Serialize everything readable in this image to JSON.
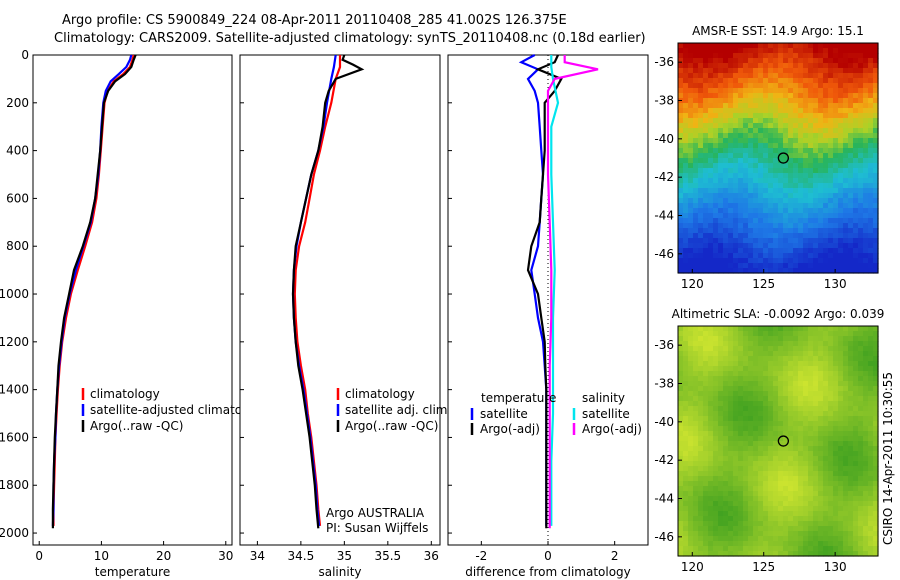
{
  "header": {
    "line1": "Argo profile: CS 5900849_224 08-Apr-2011 20110408_285 41.002S 126.375E",
    "line2": "Climatology: CARS2009. Satellite-adjusted climatology: synTS_20110408.nc (0.18d earlier)"
  },
  "colors": {
    "climatology": "#ff0000",
    "satellite": "#0000ff",
    "argo": "#000000",
    "sal_satellite": "#00e5ee",
    "sal_argo": "#ff00ff"
  },
  "chart_data": [
    {
      "type": "line",
      "name": "temperature-profile",
      "xlabel": "temperature",
      "xlim": [
        -1,
        31
      ],
      "ylim": [
        0,
        2050
      ],
      "xticks": [
        0,
        10,
        20,
        30
      ],
      "yticks": [
        0,
        200,
        400,
        600,
        800,
        1000,
        1200,
        1400,
        1600,
        1800,
        2000
      ],
      "legend": [
        "climatology",
        "satellite-adjusted climatology",
        "Argo(..raw -QC)"
      ],
      "series": [
        {
          "name": "climatology",
          "color": "#ff0000",
          "points": [
            [
              15.2,
              0
            ],
            [
              15.0,
              20
            ],
            [
              14.6,
              50
            ],
            [
              13.5,
              80
            ],
            [
              12.0,
              110
            ],
            [
              11.0,
              150
            ],
            [
              10.5,
              200
            ],
            [
              10.2,
              300
            ],
            [
              9.9,
              400
            ],
            [
              9.6,
              500
            ],
            [
              9.2,
              600
            ],
            [
              8.5,
              700
            ],
            [
              7.4,
              800
            ],
            [
              6.2,
              900
            ],
            [
              5.1,
              1000
            ],
            [
              4.3,
              1100
            ],
            [
              3.7,
              1200
            ],
            [
              3.3,
              1300
            ],
            [
              3.0,
              1400
            ],
            [
              2.8,
              1500
            ],
            [
              2.6,
              1600
            ],
            [
              2.5,
              1700
            ],
            [
              2.4,
              1800
            ],
            [
              2.3,
              1900
            ],
            [
              2.3,
              1970
            ]
          ]
        },
        {
          "name": "satellite-adjusted climatology",
          "color": "#0000ff",
          "points": [
            [
              14.8,
              0
            ],
            [
              14.6,
              20
            ],
            [
              14.0,
              50
            ],
            [
              12.8,
              80
            ],
            [
              11.5,
              110
            ],
            [
              10.7,
              150
            ],
            [
              10.3,
              200
            ],
            [
              10.0,
              300
            ],
            [
              9.8,
              400
            ],
            [
              9.5,
              500
            ],
            [
              9.0,
              600
            ],
            [
              8.3,
              700
            ],
            [
              7.1,
              800
            ],
            [
              5.9,
              900
            ],
            [
              4.9,
              1000
            ],
            [
              4.1,
              1100
            ],
            [
              3.6,
              1200
            ],
            [
              3.2,
              1300
            ],
            [
              2.9,
              1400
            ],
            [
              2.7,
              1500
            ],
            [
              2.6,
              1600
            ],
            [
              2.4,
              1700
            ],
            [
              2.3,
              1800
            ],
            [
              2.3,
              1900
            ],
            [
              2.2,
              1970
            ]
          ]
        },
        {
          "name": "Argo(..raw -QC)",
          "color": "#000000",
          "points": [
            [
              15.5,
              0
            ],
            [
              15.2,
              20
            ],
            [
              14.8,
              50
            ],
            [
              13.8,
              80
            ],
            [
              12.2,
              110
            ],
            [
              11.1,
              150
            ],
            [
              10.4,
              200
            ],
            [
              10.1,
              300
            ],
            [
              9.8,
              400
            ],
            [
              9.4,
              500
            ],
            [
              9.0,
              600
            ],
            [
              8.2,
              700
            ],
            [
              7.0,
              800
            ],
            [
              5.6,
              900
            ],
            [
              4.8,
              1000
            ],
            [
              4.0,
              1100
            ],
            [
              3.5,
              1200
            ],
            [
              3.1,
              1300
            ],
            [
              2.9,
              1400
            ],
            [
              2.7,
              1500
            ],
            [
              2.5,
              1600
            ],
            [
              2.4,
              1700
            ],
            [
              2.3,
              1800
            ],
            [
              2.2,
              1900
            ],
            [
              2.2,
              1980
            ]
          ]
        }
      ]
    },
    {
      "type": "line",
      "name": "salinity-profile",
      "xlabel": "salinity",
      "xlim": [
        33.8,
        36.1
      ],
      "ylim": [
        0,
        2050
      ],
      "xticks": [
        34,
        34.5,
        35,
        35.5,
        36
      ],
      "legend": [
        "climatology",
        "satellite adj. clim.",
        "Argo(..raw -QC)"
      ],
      "annotations": [
        "Argo AUSTRALIA",
        "PI: Susan Wijffels"
      ],
      "series": [
        {
          "name": "climatology",
          "color": "#ff0000",
          "points": [
            [
              34.95,
              0
            ],
            [
              34.95,
              50
            ],
            [
              34.9,
              100
            ],
            [
              34.85,
              200
            ],
            [
              34.78,
              300
            ],
            [
              34.72,
              400
            ],
            [
              34.65,
              500
            ],
            [
              34.6,
              600
            ],
            [
              34.55,
              700
            ],
            [
              34.48,
              800
            ],
            [
              34.44,
              900
            ],
            [
              34.43,
              1000
            ],
            [
              34.44,
              1100
            ],
            [
              34.46,
              1200
            ],
            [
              34.5,
              1300
            ],
            [
              34.55,
              1400
            ],
            [
              34.58,
              1500
            ],
            [
              34.62,
              1600
            ],
            [
              34.65,
              1700
            ],
            [
              34.68,
              1800
            ],
            [
              34.7,
              1900
            ],
            [
              34.72,
              1970
            ]
          ]
        },
        {
          "name": "satellite adj. clim.",
          "color": "#0000ff",
          "points": [
            [
              34.9,
              0
            ],
            [
              34.88,
              50
            ],
            [
              34.85,
              100
            ],
            [
              34.8,
              200
            ],
            [
              34.76,
              300
            ],
            [
              34.7,
              400
            ],
            [
              34.62,
              500
            ],
            [
              34.56,
              600
            ],
            [
              34.5,
              700
            ],
            [
              34.45,
              800
            ],
            [
              34.42,
              900
            ],
            [
              34.41,
              1000
            ],
            [
              34.42,
              1100
            ],
            [
              34.44,
              1200
            ],
            [
              34.48,
              1300
            ],
            [
              34.53,
              1400
            ],
            [
              34.57,
              1500
            ],
            [
              34.61,
              1600
            ],
            [
              34.64,
              1700
            ],
            [
              34.67,
              1800
            ],
            [
              34.69,
              1900
            ],
            [
              34.71,
              1970
            ]
          ]
        },
        {
          "name": "Argo(..raw -QC)",
          "color": "#000000",
          "points": [
            [
              35.0,
              0
            ],
            [
              34.98,
              20
            ],
            [
              35.1,
              40
            ],
            [
              35.2,
              60
            ],
            [
              34.9,
              100
            ],
            [
              34.82,
              150
            ],
            [
              34.78,
              200
            ],
            [
              34.75,
              300
            ],
            [
              34.7,
              400
            ],
            [
              34.62,
              500
            ],
            [
              34.56,
              600
            ],
            [
              34.5,
              700
            ],
            [
              34.44,
              800
            ],
            [
              34.42,
              900
            ],
            [
              34.41,
              1000
            ],
            [
              34.42,
              1100
            ],
            [
              34.44,
              1200
            ],
            [
              34.47,
              1300
            ],
            [
              34.52,
              1400
            ],
            [
              34.56,
              1500
            ],
            [
              34.6,
              1600
            ],
            [
              34.63,
              1700
            ],
            [
              34.66,
              1800
            ],
            [
              34.68,
              1900
            ],
            [
              34.7,
              1980
            ]
          ]
        }
      ]
    },
    {
      "type": "line",
      "name": "difference-from-climatology",
      "xlabel": "difference from climatology",
      "xlim": [
        -3,
        3
      ],
      "ylim": [
        0,
        2050
      ],
      "xticks": [
        -2,
        0,
        2
      ],
      "legend_titles": [
        "temperature",
        "salinity"
      ],
      "legend": [
        "satellite",
        "Argo(-adj)",
        "satellite",
        "Argo(-adj)"
      ],
      "series": [
        {
          "name": "temperature satellite",
          "color": "#0000ff",
          "points": [
            [
              -0.4,
              0
            ],
            [
              -0.8,
              30
            ],
            [
              -0.3,
              60
            ],
            [
              -0.6,
              100
            ],
            [
              -0.4,
              150
            ],
            [
              -0.3,
              200
            ],
            [
              -0.25,
              300
            ],
            [
              -0.2,
              400
            ],
            [
              -0.15,
              500
            ],
            [
              -0.2,
              600
            ],
            [
              -0.25,
              700
            ],
            [
              -0.3,
              800
            ],
            [
              -0.5,
              900
            ],
            [
              -0.4,
              1000
            ],
            [
              -0.3,
              1100
            ],
            [
              -0.15,
              1200
            ],
            [
              -0.1,
              1300
            ],
            [
              -0.05,
              1400
            ],
            [
              -0.05,
              1500
            ],
            [
              -0.05,
              1600
            ],
            [
              -0.05,
              1800
            ],
            [
              -0.05,
              1970
            ]
          ]
        },
        {
          "name": "temperature Argo(-adj)",
          "color": "#000000",
          "points": [
            [
              0.3,
              0
            ],
            [
              0.2,
              30
            ],
            [
              -0.3,
              60
            ],
            [
              0.4,
              100
            ],
            [
              0.2,
              150
            ],
            [
              -0.1,
              200
            ],
            [
              -0.1,
              300
            ],
            [
              -0.1,
              400
            ],
            [
              -0.15,
              500
            ],
            [
              -0.2,
              600
            ],
            [
              -0.25,
              700
            ],
            [
              -0.5,
              800
            ],
            [
              -0.6,
              900
            ],
            [
              -0.3,
              1000
            ],
            [
              -0.2,
              1100
            ],
            [
              -0.1,
              1200
            ],
            [
              -0.08,
              1300
            ],
            [
              -0.05,
              1400
            ],
            [
              -0.05,
              1600
            ],
            [
              -0.05,
              1800
            ],
            [
              -0.05,
              1980
            ]
          ]
        },
        {
          "name": "salinity satellite",
          "color": "#00e5ee",
          "points": [
            [
              0.1,
              0
            ],
            [
              0.1,
              50
            ],
            [
              0.15,
              100
            ],
            [
              0.3,
              200
            ],
            [
              0.1,
              300
            ],
            [
              0.1,
              500
            ],
            [
              0.15,
              700
            ],
            [
              0.2,
              900
            ],
            [
              0.15,
              1100
            ],
            [
              0.15,
              1300
            ],
            [
              0.15,
              1500
            ],
            [
              0.1,
              1700
            ],
            [
              0.1,
              1970
            ]
          ]
        },
        {
          "name": "salinity Argo(-adj)",
          "color": "#ff00ff",
          "points": [
            [
              0.5,
              0
            ],
            [
              0.5,
              30
            ],
            [
              1.5,
              60
            ],
            [
              0.2,
              100
            ],
            [
              0.0,
              150
            ],
            [
              0.0,
              300
            ],
            [
              0.0,
              500
            ],
            [
              0.05,
              700
            ],
            [
              0.1,
              900
            ],
            [
              0.1,
              1100
            ],
            [
              0.05,
              1300
            ],
            [
              0.05,
              1500
            ],
            [
              0.05,
              1700
            ],
            [
              0.05,
              1980
            ]
          ]
        }
      ]
    },
    {
      "type": "heatmap",
      "name": "sst-map",
      "title": "AMSR-E SST: 14.9 Argo: 15.1",
      "xlim": [
        119,
        133
      ],
      "ylim": [
        -47,
        -35
      ],
      "xticks": [
        120,
        125,
        130
      ],
      "yticks": [
        -36,
        -38,
        -40,
        -42,
        -44,
        -46
      ],
      "marker": [
        126.375,
        -41.002
      ]
    },
    {
      "type": "heatmap",
      "name": "sla-map",
      "title": "Altimetric SLA: -0.0092 Argo: 0.039",
      "xlim": [
        119,
        133
      ],
      "ylim": [
        -47,
        -35
      ],
      "xticks": [
        120,
        125,
        130
      ],
      "yticks": [
        -36,
        -38,
        -40,
        -42,
        -44,
        -46
      ],
      "marker": [
        126.375,
        -41.002
      ]
    }
  ],
  "footer": {
    "credit": "CSIRO 14-Apr-2011 10:30:55"
  }
}
